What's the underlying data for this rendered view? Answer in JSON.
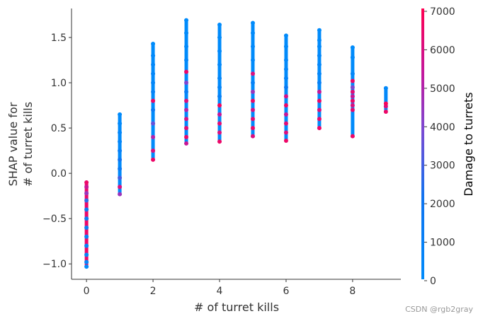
{
  "chart_data": {
    "type": "scatter",
    "title": "",
    "xlabel": "# of turret kills",
    "ylabel_lines": [
      "SHAP value for",
      "# of turret kills"
    ],
    "xlim": [
      -0.45,
      9.45
    ],
    "ylim": [
      -1.17,
      1.82
    ],
    "x_ticks": [
      0,
      2,
      4,
      6,
      8
    ],
    "x_tick_labels": [
      "0",
      "2",
      "4",
      "6",
      "8"
    ],
    "y_ticks": [
      -1.0,
      -0.5,
      0.0,
      0.5,
      1.0,
      1.5
    ],
    "y_tick_labels": [
      "−1.0",
      "−0.5",
      "0.0",
      "0.5",
      "1.0",
      "1.5"
    ],
    "grid": false,
    "colorbar": {
      "label": "Damage to turrets",
      "range": [
        0,
        7000
      ],
      "ticks": [
        0,
        1000,
        2000,
        3000,
        4000,
        5000,
        6000,
        7000
      ],
      "tick_labels": [
        "0",
        "1000",
        "2000",
        "3000",
        "4000",
        "5000",
        "6000",
        "7000"
      ],
      "colors": [
        "#008bfb",
        "#ff0051"
      ]
    },
    "columns": [
      {
        "x": 0,
        "y_min": -1.03,
        "y_max": -0.1,
        "points": [
          {
            "y": -1.03,
            "c": 0
          },
          {
            "y": -0.98,
            "c": 300
          },
          {
            "y": -0.9,
            "c": 500
          },
          {
            "y": -0.8,
            "c": 700
          },
          {
            "y": -0.7,
            "c": 900
          },
          {
            "y": -0.6,
            "c": 1200
          },
          {
            "y": -0.5,
            "c": 1500
          },
          {
            "y": -0.4,
            "c": 1800
          },
          {
            "y": -0.3,
            "c": 2600
          },
          {
            "y": -0.22,
            "c": 4500
          },
          {
            "y": -0.15,
            "c": 5500
          },
          {
            "y": -0.1,
            "c": 6500
          }
        ]
      },
      {
        "x": 1,
        "y_min": -0.23,
        "y_max": 0.65,
        "points": [
          {
            "y": -0.23,
            "c": 4500
          },
          {
            "y": -0.15,
            "c": 6000
          },
          {
            "y": -0.05,
            "c": 3000
          },
          {
            "y": 0.05,
            "c": 1500
          },
          {
            "y": 0.15,
            "c": 2000
          },
          {
            "y": 0.25,
            "c": 1000
          },
          {
            "y": 0.35,
            "c": 500
          },
          {
            "y": 0.45,
            "c": 400
          },
          {
            "y": 0.55,
            "c": 200
          },
          {
            "y": 0.65,
            "c": 100
          }
        ]
      },
      {
        "x": 2,
        "y_min": 0.15,
        "y_max": 1.43,
        "points": [
          {
            "y": 0.15,
            "c": 6500
          },
          {
            "y": 0.25,
            "c": 6000
          },
          {
            "y": 0.4,
            "c": 5000
          },
          {
            "y": 0.55,
            "c": 3500
          },
          {
            "y": 0.7,
            "c": 1500
          },
          {
            "y": 0.8,
            "c": 6500
          },
          {
            "y": 0.9,
            "c": 800
          },
          {
            "y": 1.0,
            "c": 500
          },
          {
            "y": 1.1,
            "c": 400
          },
          {
            "y": 1.2,
            "c": 300
          },
          {
            "y": 1.3,
            "c": 200
          },
          {
            "y": 1.43,
            "c": 0
          }
        ]
      },
      {
        "x": 3,
        "y_min": 0.33,
        "y_max": 1.69,
        "points": [
          {
            "y": 0.33,
            "c": 5500
          },
          {
            "y": 0.4,
            "c": 6500
          },
          {
            "y": 0.5,
            "c": 6200
          },
          {
            "y": 0.6,
            "c": 5800
          },
          {
            "y": 0.7,
            "c": 5000
          },
          {
            "y": 0.8,
            "c": 6000
          },
          {
            "y": 0.9,
            "c": 1200
          },
          {
            "y": 1.0,
            "c": 4000
          },
          {
            "y": 1.12,
            "c": 6500
          },
          {
            "y": 1.25,
            "c": 400
          },
          {
            "y": 1.4,
            "c": 200
          },
          {
            "y": 1.55,
            "c": 100
          },
          {
            "y": 1.69,
            "c": 0
          }
        ]
      },
      {
        "x": 4,
        "y_min": 0.35,
        "y_max": 1.64,
        "points": [
          {
            "y": 0.35,
            "c": 6500
          },
          {
            "y": 0.45,
            "c": 6000
          },
          {
            "y": 0.55,
            "c": 6200
          },
          {
            "y": 0.65,
            "c": 5500
          },
          {
            "y": 0.75,
            "c": 6800
          },
          {
            "y": 0.85,
            "c": 1000
          },
          {
            "y": 0.95,
            "c": 600
          },
          {
            "y": 1.05,
            "c": 500
          },
          {
            "y": 1.2,
            "c": 300
          },
          {
            "y": 1.35,
            "c": 200
          },
          {
            "y": 1.5,
            "c": 100
          },
          {
            "y": 1.64,
            "c": 0
          }
        ]
      },
      {
        "x": 5,
        "y_min": 0.41,
        "y_max": 1.66,
        "points": [
          {
            "y": 0.41,
            "c": 6000
          },
          {
            "y": 0.5,
            "c": 6500
          },
          {
            "y": 0.6,
            "c": 6200
          },
          {
            "y": 0.7,
            "c": 5800
          },
          {
            "y": 0.8,
            "c": 6500
          },
          {
            "y": 0.9,
            "c": 4500
          },
          {
            "y": 1.0,
            "c": 800
          },
          {
            "y": 1.1,
            "c": 6000
          },
          {
            "y": 1.25,
            "c": 300
          },
          {
            "y": 1.4,
            "c": 200
          },
          {
            "y": 1.55,
            "c": 100
          },
          {
            "y": 1.66,
            "c": 0
          }
        ]
      },
      {
        "x": 6,
        "y_min": 0.36,
        "y_max": 1.52,
        "points": [
          {
            "y": 0.36,
            "c": 6500
          },
          {
            "y": 0.45,
            "c": 6000
          },
          {
            "y": 0.55,
            "c": 6200
          },
          {
            "y": 0.65,
            "c": 5500
          },
          {
            "y": 0.75,
            "c": 6500
          },
          {
            "y": 0.85,
            "c": 5800
          },
          {
            "y": 0.95,
            "c": 1500
          },
          {
            "y": 1.05,
            "c": 600
          },
          {
            "y": 1.15,
            "c": 400
          },
          {
            "y": 1.25,
            "c": 300
          },
          {
            "y": 1.4,
            "c": 200
          },
          {
            "y": 1.52,
            "c": 100
          }
        ]
      },
      {
        "x": 7,
        "y_min": 0.5,
        "y_max": 1.58,
        "points": [
          {
            "y": 0.5,
            "c": 6500
          },
          {
            "y": 0.6,
            "c": 6300
          },
          {
            "y": 0.7,
            "c": 6000
          },
          {
            "y": 0.8,
            "c": 6500
          },
          {
            "y": 0.9,
            "c": 5500
          },
          {
            "y": 1.0,
            "c": 1000
          },
          {
            "y": 1.1,
            "c": 500
          },
          {
            "y": 1.2,
            "c": 400
          },
          {
            "y": 1.3,
            "c": 300
          },
          {
            "y": 1.4,
            "c": 200
          },
          {
            "y": 1.47,
            "c": 100
          },
          {
            "y": 1.58,
            "c": 0
          }
        ]
      },
      {
        "x": 8,
        "y_min": 0.41,
        "y_max": 1.39,
        "points": [
          {
            "y": 0.41,
            "c": 6500
          },
          {
            "y": 0.7,
            "c": 6300
          },
          {
            "y": 0.75,
            "c": 6000
          },
          {
            "y": 0.8,
            "c": 6500
          },
          {
            "y": 0.85,
            "c": 5500
          },
          {
            "y": 0.9,
            "c": 6200
          },
          {
            "y": 0.95,
            "c": 4000
          },
          {
            "y": 1.02,
            "c": 6500
          },
          {
            "y": 1.1,
            "c": 500
          },
          {
            "y": 1.28,
            "c": 200
          },
          {
            "y": 1.39,
            "c": 0
          }
        ]
      },
      {
        "x": 9,
        "y_min": 0.68,
        "y_max": 0.94,
        "points": [
          {
            "y": 0.68,
            "c": 6500
          },
          {
            "y": 0.74,
            "c": 6000
          },
          {
            "y": 0.77,
            "c": 6800
          },
          {
            "y": 0.94,
            "c": 300
          }
        ]
      }
    ]
  },
  "watermark": "CSDN @rgb2gray"
}
